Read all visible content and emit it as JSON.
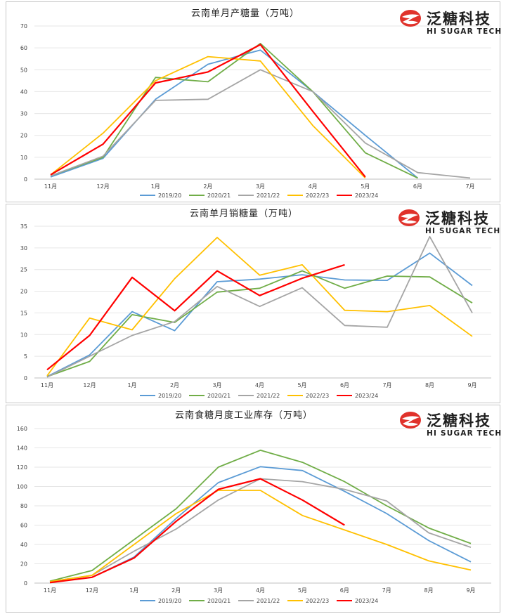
{
  "brand": {
    "name_cn": "泛糖科技",
    "name_en": "HI SUGAR TECH",
    "color": "#e0322b"
  },
  "series_colors": {
    "2019/20": "#5b9bd5",
    "2020/21": "#70ad47",
    "2021/22": "#a5a5a5",
    "2022/23": "#ffc000",
    "2023/24": "#ff0000"
  },
  "chart_data": [
    {
      "type": "line",
      "title": "云南单月产糖量（万吨）",
      "categories": [
        "11月",
        "12月",
        "1月",
        "2月",
        "3月",
        "4月",
        "5月",
        "6月",
        "7月"
      ],
      "ylim": [
        0,
        70
      ],
      "yticks": [
        0,
        10,
        20,
        30,
        40,
        50,
        60,
        70
      ],
      "series": [
        {
          "name": "2019/20",
          "values": [
            1,
            9.5,
            36.5,
            52.5,
            59,
            40,
            20,
            0.5,
            null
          ]
        },
        {
          "name": "2020/21",
          "values": [
            1.5,
            10,
            46.5,
            44.5,
            62,
            40,
            12,
            0.5,
            null
          ]
        },
        {
          "name": "2021/22",
          "values": [
            1.5,
            10.5,
            36,
            36.5,
            50,
            40,
            16.5,
            3,
            0.5
          ]
        },
        {
          "name": "2022/23",
          "values": [
            2,
            21,
            45,
            56,
            54,
            24.5,
            0.5,
            null,
            null
          ]
        },
        {
          "name": "2023/24",
          "values": [
            2,
            16,
            44,
            49,
            61.5,
            31,
            1,
            null,
            null
          ]
        }
      ]
    },
    {
      "type": "line",
      "title": "云南单月销糖量（万吨）",
      "categories": [
        "11月",
        "12月",
        "1月",
        "2月",
        "3月",
        "4月",
        "5月",
        "6月",
        "7月",
        "8月",
        "9月"
      ],
      "ylim": [
        0,
        35
      ],
      "yticks": [
        0,
        5,
        10,
        15,
        20,
        25,
        30,
        35
      ],
      "series": [
        {
          "name": "2019/20",
          "values": [
            0.3,
            5.3,
            15.3,
            10.9,
            22.2,
            22.8,
            23.8,
            22.6,
            22.5,
            28.8,
            21.3
          ]
        },
        {
          "name": "2020/21",
          "values": [
            0.3,
            3.8,
            14.6,
            12.8,
            19.8,
            20.7,
            24.7,
            20.7,
            23.5,
            23.3,
            17.3
          ]
        },
        {
          "name": "2021/22",
          "values": [
            0.2,
            5,
            9.8,
            13,
            21.1,
            16.5,
            20.8,
            12.1,
            11.7,
            32.6,
            15
          ]
        },
        {
          "name": "2022/23",
          "values": [
            0.5,
            13.8,
            11.1,
            22.9,
            32.4,
            23.7,
            26.1,
            15.6,
            15.3,
            16.7,
            9.6
          ]
        },
        {
          "name": "2023/24",
          "values": [
            1.9,
            9.8,
            23.2,
            15.5,
            24.7,
            19,
            23,
            26.1,
            null,
            null,
            null
          ]
        }
      ]
    },
    {
      "type": "line",
      "title": "云南食糖月度工业库存（万吨）",
      "categories": [
        "11月",
        "12月",
        "1月",
        "2月",
        "3月",
        "4月",
        "5月",
        "6月",
        "7月",
        "8月",
        "9月"
      ],
      "ylim": [
        0,
        160
      ],
      "yticks": [
        0,
        20,
        40,
        60,
        80,
        100,
        120,
        140,
        160
      ],
      "series": [
        {
          "name": "2019/20",
          "values": [
            1,
            6,
            27,
            67,
            104,
            120.5,
            116.5,
            95,
            72,
            44,
            22
          ]
        },
        {
          "name": "2020/21",
          "values": [
            2,
            13,
            45,
            77,
            120,
            137.5,
            125,
            105,
            80,
            57,
            41
          ]
        },
        {
          "name": "2021/22",
          "values": [
            1.5,
            8,
            33,
            56,
            86,
            108,
            105,
            97,
            85,
            52,
            37
          ]
        },
        {
          "name": "2022/23",
          "values": [
            1.5,
            8,
            40,
            72,
            96,
            96,
            70,
            55,
            40,
            23,
            13.5
          ]
        },
        {
          "name": "2023/24",
          "values": [
            0.5,
            6,
            26,
            64,
            97,
            108,
            86,
            60,
            null,
            null,
            null
          ]
        }
      ]
    }
  ]
}
